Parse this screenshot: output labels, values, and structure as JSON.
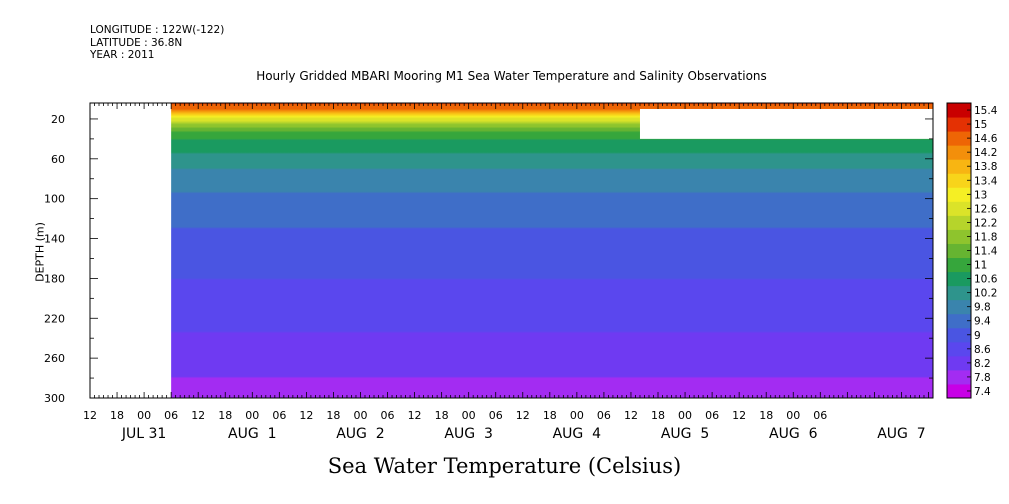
{
  "header": {
    "longitude": "LONGITUDE : 122W(-122)",
    "latitude": "LATITUDE : 36.8N",
    "year": "YEAR : 2011",
    "title": "Hourly Gridded MBARI Mooring M1 Sea Water Temperature and Salinity Observations"
  },
  "variable_title": "Sea Water Temperature (Celsius)",
  "chart_data": {
    "type": "heatmap",
    "title": "Hourly Gridded MBARI Mooring M1 Sea Water Temperature and Salinity Observations",
    "xlabel": "",
    "ylabel": "DEPTH (m)",
    "colorbar_label": "Sea Water Temperature (Celsius)",
    "x_start_hours": -12,
    "x_end_hours": 175,
    "data_start_hours": 6,
    "x_tick_labels": [
      "12",
      "18",
      "00",
      "06",
      "12",
      "18",
      "00",
      "06",
      "12",
      "18",
      "00",
      "06",
      "12",
      "18",
      "00",
      "06",
      "12",
      "18",
      "00",
      "06",
      "12",
      "18",
      "00",
      "06",
      "12",
      "18",
      "00",
      "06"
    ],
    "date_labels": [
      {
        "hours": 0,
        "label": "JUL 31"
      },
      {
        "hours": 24,
        "label": "AUG  1"
      },
      {
        "hours": 48,
        "label": "AUG  2"
      },
      {
        "hours": 72,
        "label": "AUG  3"
      },
      {
        "hours": 96,
        "label": "AUG  4"
      },
      {
        "hours": 120,
        "label": "AUG  5"
      },
      {
        "hours": 144,
        "label": "AUG  6"
      },
      {
        "hours": 168,
        "label": "AUG  7"
      }
    ],
    "ylim": [
      300,
      4
    ],
    "y_ticks": [
      20,
      60,
      100,
      140,
      180,
      220,
      260,
      300
    ],
    "missing_block": {
      "x_start_hours": 110,
      "x_end_hours": 175,
      "depth_top": 10,
      "depth_bottom": 40
    },
    "color_levels": [
      7.4,
      7.8,
      8.2,
      8.6,
      9,
      9.4,
      9.8,
      10.2,
      10.6,
      11,
      11.4,
      11.8,
      12.2,
      12.6,
      13,
      13.4,
      13.8,
      14.2,
      14.6,
      15,
      15.4
    ],
    "colorbar_labels": [
      "15.4",
      "15",
      "14.6",
      "14.2",
      "13.8",
      "13.4",
      "13",
      "12.6",
      "12.2",
      "11.8",
      "11.4",
      "11",
      "10.6",
      "10.2",
      "9.8",
      "9.4",
      "9",
      "8.6",
      "8.2",
      "7.8",
      "7.4"
    ],
    "colors": [
      "#c700e6",
      "#a32cf2",
      "#6f3af2",
      "#5a47ee",
      "#4a55e2",
      "#3f6ec8",
      "#3a84ad",
      "#2e948c",
      "#1a9a60",
      "#36a63c",
      "#66b431",
      "#8ec42d",
      "#b6d42b",
      "#dbe329",
      "#f5ef24",
      "#f8d41a",
      "#f8b512",
      "#f38f0b",
      "#ee6505",
      "#e43103",
      "#c90000"
    ],
    "depth_profile": [
      {
        "depth": 4,
        "temperature": 15.0
      },
      {
        "depth": 10,
        "temperature": 14.6
      },
      {
        "depth": 16,
        "temperature": 13.6
      },
      {
        "depth": 22,
        "temperature": 12.6
      },
      {
        "depth": 30,
        "temperature": 11.6
      },
      {
        "depth": 40,
        "temperature": 11.0
      },
      {
        "depth": 60,
        "temperature": 10.4
      },
      {
        "depth": 80,
        "temperature": 10.0
      },
      {
        "depth": 100,
        "temperature": 9.7
      },
      {
        "depth": 140,
        "temperature": 9.3
      },
      {
        "depth": 180,
        "temperature": 9.0
      },
      {
        "depth": 220,
        "temperature": 8.7
      },
      {
        "depth": 260,
        "temperature": 8.4
      },
      {
        "depth": 300,
        "temperature": 8.0
      }
    ]
  }
}
